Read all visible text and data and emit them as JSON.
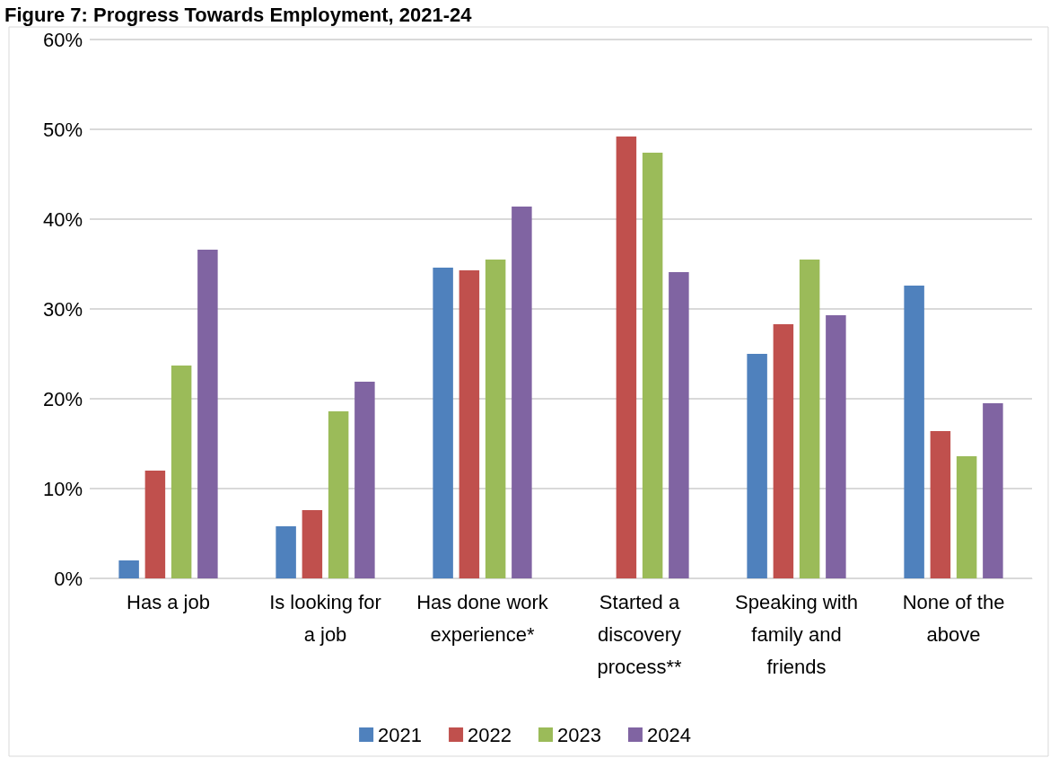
{
  "chart_data": {
    "type": "bar",
    "title": "Figure 7: Progress Towards Employment, 2021-24",
    "categories": [
      "Has a job",
      "Is looking for a job",
      "Has done work experience*",
      "Started a discovery process**",
      "Speaking with family and friends",
      "None of the above"
    ],
    "series": [
      {
        "name": "2021",
        "color": "#4f81bd",
        "values": [
          2.0,
          5.8,
          34.6,
          null,
          25.0,
          32.6
        ]
      },
      {
        "name": "2022",
        "color": "#c0504d",
        "values": [
          12.0,
          7.6,
          34.3,
          49.2,
          28.3,
          16.4
        ]
      },
      {
        "name": "2023",
        "color": "#9bbb59",
        "values": [
          23.7,
          18.6,
          35.5,
          47.4,
          35.5,
          13.6
        ]
      },
      {
        "name": "2024",
        "color": "#8064a2",
        "values": [
          36.6,
          21.9,
          41.4,
          34.1,
          29.3,
          19.5
        ]
      }
    ],
    "ylim": [
      0,
      60
    ],
    "yticks": [
      {
        "value": 0,
        "label": "0%"
      },
      {
        "value": 10,
        "label": "10%"
      },
      {
        "value": 20,
        "label": "20%"
      },
      {
        "value": 30,
        "label": "30%"
      },
      {
        "value": 40,
        "label": "40%"
      },
      {
        "value": 50,
        "label": "50%"
      },
      {
        "value": 60,
        "label": "60%"
      }
    ],
    "grid": "y",
    "legend": "bottom"
  }
}
